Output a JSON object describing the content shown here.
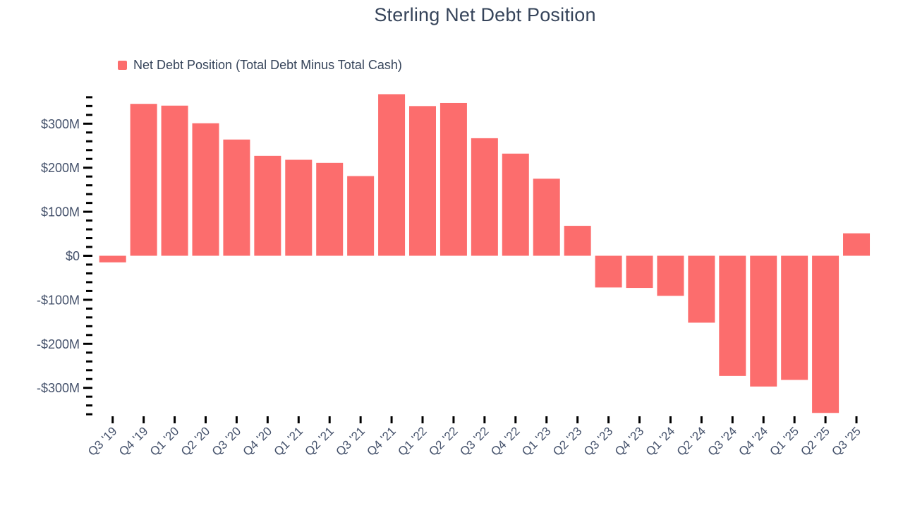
{
  "chart_data": {
    "type": "bar",
    "title": "Sterling Net Debt Position",
    "legend": "Net Debt Position (Total Debt Minus Total Cash)",
    "unit": "millions USD",
    "categories": [
      "Q3 '19",
      "Q4 '19",
      "Q1 '20",
      "Q2 '20",
      "Q3 '20",
      "Q4 '20",
      "Q1 '21",
      "Q2 '21",
      "Q3 '21",
      "Q4 '21",
      "Q1 '22",
      "Q2 '22",
      "Q3 '22",
      "Q4 '22",
      "Q1 '23",
      "Q2 '23",
      "Q3 '23",
      "Q4 '23",
      "Q1 '24",
      "Q2 '24",
      "Q3 '24",
      "Q4 '24",
      "Q1 '25",
      "Q2 '25",
      "Q3 '25"
    ],
    "values": [
      -15,
      345,
      341,
      301,
      264,
      227,
      218,
      211,
      181,
      367,
      340,
      347,
      267,
      232,
      175,
      68,
      -72,
      -73,
      -91,
      -152,
      -273,
      -297,
      -282,
      -357,
      51
    ],
    "bar_color": "#fc6d6d",
    "tick_color": "#000000",
    "grid": false,
    "legend_position": "top-left",
    "y_axis": {
      "range": [
        -360,
        360
      ],
      "minor_step": 20,
      "major_ticks": [
        {
          "v": 300,
          "label": "$300M"
        },
        {
          "v": 200,
          "label": "$200M"
        },
        {
          "v": 100,
          "label": "$100M"
        },
        {
          "v": 0,
          "label": "$0"
        },
        {
          "v": -100,
          "label": "-$100M"
        },
        {
          "v": -200,
          "label": "-$200M"
        },
        {
          "v": -300,
          "label": "-$300M"
        }
      ]
    }
  }
}
